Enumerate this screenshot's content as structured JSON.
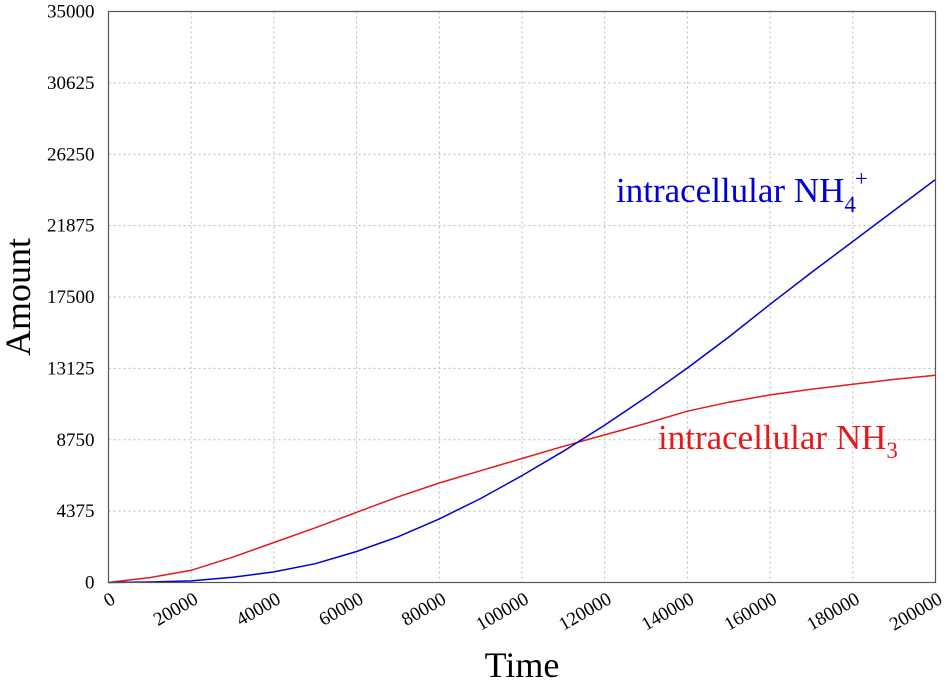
{
  "chart_data": {
    "type": "line",
    "xlabel": "Time",
    "ylabel": "Amount",
    "xlim": [
      0,
      200000
    ],
    "ylim": [
      0,
      35000
    ],
    "x_ticks": [
      "0",
      "20000",
      "40000",
      "60000",
      "80000",
      "100000",
      "120000",
      "140000",
      "160000",
      "180000",
      "200000"
    ],
    "y_ticks": [
      "0",
      "4375",
      "8750",
      "13125",
      "17500",
      "21875",
      "26250",
      "30625",
      "35000"
    ],
    "grid": true,
    "series": [
      {
        "name": "intracellular NH3",
        "label_main": "intracellular NH",
        "label_sub": "3",
        "label_sup": "",
        "color": "#e31a1c",
        "x": [
          0,
          10000,
          20000,
          30000,
          40000,
          50000,
          60000,
          70000,
          80000,
          90000,
          100000,
          110000,
          120000,
          130000,
          140000,
          150000,
          160000,
          170000,
          180000,
          190000,
          200000
        ],
        "y": [
          0,
          300,
          750,
          1550,
          2450,
          3350,
          4300,
          5250,
          6100,
          6850,
          7600,
          8350,
          9050,
          9750,
          10500,
          11050,
          11500,
          11850,
          12150,
          12450,
          12700
        ]
      },
      {
        "name": "intracellular NH4+",
        "label_main": "intracellular NH",
        "label_sub": "4",
        "label_sup": "+",
        "color": "#0000d4",
        "x": [
          0,
          10000,
          20000,
          30000,
          40000,
          50000,
          60000,
          70000,
          80000,
          90000,
          100000,
          110000,
          120000,
          130000,
          140000,
          150000,
          160000,
          170000,
          180000,
          190000,
          200000
        ],
        "y": [
          0,
          30,
          100,
          320,
          650,
          1150,
          1900,
          2800,
          3900,
          5150,
          6550,
          8050,
          9650,
          11350,
          13150,
          15050,
          17050,
          19000,
          20900,
          22800,
          24700
        ]
      }
    ]
  }
}
